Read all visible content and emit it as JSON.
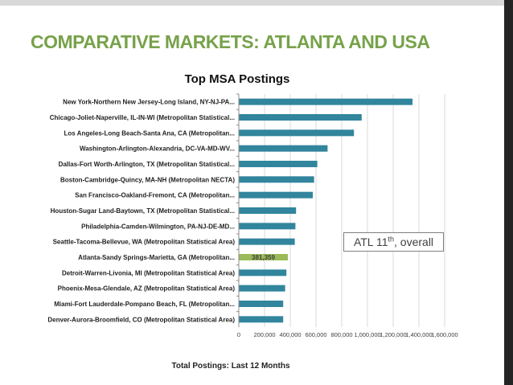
{
  "slide": {
    "title": "COMPARATIVE MARKETS: ATLANTA AND USA",
    "footnote": "Total Postings: Last 12 Months",
    "callout": {
      "prefix": "ATL 11",
      "superscript": "th",
      "suffix": ", overall"
    }
  },
  "colors": {
    "bar": "#31859c",
    "highlight": "#9bbb59",
    "title": "#77a24a"
  },
  "chart_data": {
    "type": "bar",
    "orientation": "horizontal",
    "title": "Top MSA Postings",
    "xlabel": "Total Postings: Last 12 Months",
    "ylabel": "",
    "xlim": [
      0,
      1600000
    ],
    "ticks": [
      0,
      200000,
      400000,
      600000,
      800000,
      1000000,
      1200000,
      1400000,
      1600000
    ],
    "tick_labels": [
      "0",
      "200,000",
      "400,000",
      "600,000",
      "800,000",
      "1,000,000",
      "1,200,000",
      "1,400,000",
      "1,600,000"
    ],
    "categories": [
      "New York-Northern New Jersey-Long Island, NY-NJ-PA...",
      "Chicago-Joliet-Naperville, IL-IN-WI (Metropolitan Statistical...",
      "Los Angeles-Long Beach-Santa Ana, CA (Metropolitan...",
      "Washington-Arlington-Alexandria, DC-VA-MD-WV...",
      "Dallas-Fort Worth-Arlington, TX (Metropolitan Statistical...",
      "Boston-Cambridge-Quincy, MA-NH (Metropolitan NECTA)",
      "San Francisco-Oakland-Fremont, CA (Metropolitan...",
      "Houston-Sugar Land-Baytown, TX (Metropolitan Statistical...",
      "Philadelphia-Camden-Wilmington, PA-NJ-DE-MD...",
      "Seattle-Tacoma-Bellevue, WA (Metropolitan Statistical Area)",
      "Atlanta-Sandy Springs-Marietta, GA (Metropolitan...",
      "Detroit-Warren-Livonia, MI (Metropolitan Statistical Area)",
      "Phoenix-Mesa-Glendale, AZ (Metropolitan Statistical Area)",
      "Miami-Fort Lauderdale-Pompano Beach, FL (Metropolitan...",
      "Denver-Aurora-Broomfield, CO (Metropolitan Statistical Area)"
    ],
    "values": [
      1350000,
      955000,
      895000,
      690000,
      610000,
      585000,
      575000,
      445000,
      440000,
      435000,
      381359,
      370000,
      360000,
      345000,
      345000
    ],
    "highlight_index": 10,
    "data_labels": {
      "10": "381,359"
    },
    "legend": "none",
    "grid": "vertical"
  }
}
